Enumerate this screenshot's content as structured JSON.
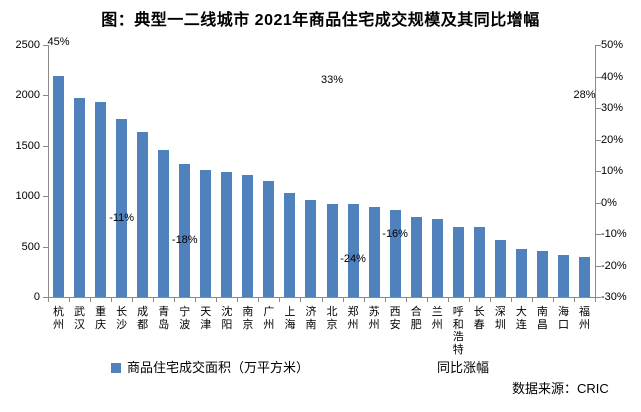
{
  "title": "图：典型一二线城市 2021年商品住宅成交规模及其同比增幅",
  "source_note": "数据来源：CRIC",
  "legend": {
    "bar_label": "商品住宅成交面积（万平方米）",
    "line_label": "同比涨幅"
  },
  "colors": {
    "bar": "#4F81BD",
    "axis": "#8a8a8a",
    "text": "#000000",
    "background": "#ffffff"
  },
  "chart_data": {
    "type": "bar",
    "title": "图：典型一二线城市 2021年商品住宅成交规模及其同比增幅",
    "categories": [
      "杭州",
      "武汉",
      "重庆",
      "长沙",
      "成都",
      "青岛",
      "宁波",
      "天津",
      "沈阳",
      "南京",
      "广州",
      "上海",
      "济南",
      "北京",
      "郑州",
      "苏州",
      "西安",
      "合肥",
      "兰州",
      "呼和浩特",
      "长春",
      "深圳",
      "大连",
      "南昌",
      "海口",
      "福州"
    ],
    "series": [
      {
        "name": "商品住宅成交面积（万平方米）",
        "type": "bar",
        "axis": "left",
        "values": [
          2190,
          1970,
          1930,
          1765,
          1640,
          1460,
          1315,
          1260,
          1240,
          1215,
          1150,
          1035,
          965,
          920,
          920,
          895,
          865,
          790,
          775,
          695,
          690,
          570,
          480,
          455,
          420,
          400
        ]
      },
      {
        "name": "同比涨幅",
        "type": "line",
        "axis": "right",
        "note": "line/markers not drawn; only scattered data labels visible",
        "values": [
          45,
          null,
          null,
          -11,
          null,
          null,
          -18,
          null,
          null,
          null,
          null,
          null,
          null,
          33,
          -24,
          null,
          -16,
          null,
          null,
          null,
          null,
          null,
          null,
          null,
          null,
          28
        ]
      }
    ],
    "y_axis_left": {
      "min": 0,
      "max": 2500,
      "ticks": [
        "2500",
        "2000",
        "1500",
        "1000",
        "500",
        "0"
      ]
    },
    "y_axis_right": {
      "min": -30,
      "max": 50,
      "ticks": [
        "50%",
        "40%",
        "30%",
        "20%",
        "10%",
        "0%",
        "-10%",
        "-20%",
        "-30%"
      ]
    },
    "grid": false,
    "legend_position": "bottom",
    "xlabel": "",
    "ylabel": ""
  }
}
